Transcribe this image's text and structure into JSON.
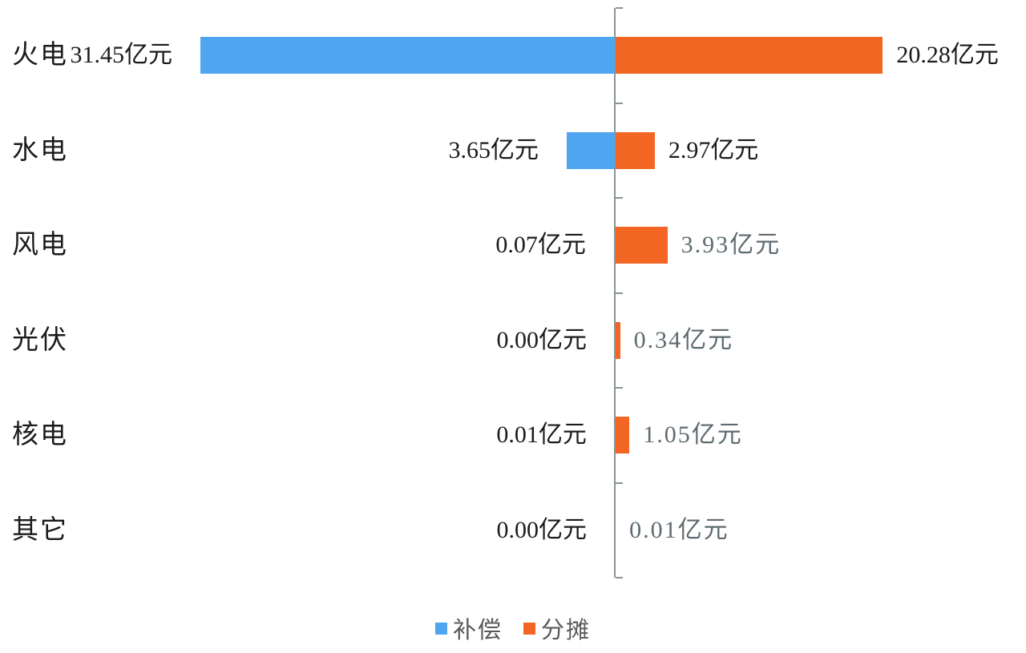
{
  "colors": {
    "compensation_blue": "#4FA5F0",
    "allocation_orange": "#F26522",
    "axis_gray": "#8A9595",
    "label_dark": "#1B1B1B",
    "label_muted": "#5E6B70",
    "legend_text": "#595959",
    "background": "#FFFFFF"
  },
  "legend": {
    "position": "bottom",
    "items": [
      {
        "label": "补偿",
        "color": "#4FA5F0"
      },
      {
        "label": "分摊",
        "color": "#F26522"
      }
    ]
  },
  "chart_data": {
    "type": "bar",
    "orientation": "horizontal-diverging",
    "title": "",
    "xlabel": "",
    "ylabel": "",
    "unit": "亿元",
    "grid": false,
    "legend_position": "bottom",
    "categories": [
      "火电",
      "水电",
      "风电",
      "光伏",
      "核电",
      "其它"
    ],
    "series": [
      {
        "name": "补偿",
        "side": "left",
        "color": "#4FA5F0",
        "values": [
          31.45,
          3.65,
          0.07,
          0.0,
          0.01,
          0.0
        ],
        "labels": [
          "31.45亿元",
          "3.65亿元",
          "0.07亿元",
          "0.00亿元",
          "0.01亿元",
          "0.00亿元"
        ],
        "label_styles": [
          "dark",
          "dark",
          "dark",
          "dark",
          "dark",
          "dark"
        ]
      },
      {
        "name": "分摊",
        "side": "right",
        "color": "#F26522",
        "values": [
          20.28,
          2.97,
          3.93,
          0.34,
          1.05,
          0.01
        ],
        "labels": [
          "20.28亿元",
          "2.97亿元",
          "3.93亿元",
          "0.34亿元",
          "1.05亿元",
          "0.01亿元"
        ],
        "label_styles": [
          "dark",
          "dark",
          "muted",
          "muted",
          "muted",
          "muted"
        ]
      }
    ]
  }
}
